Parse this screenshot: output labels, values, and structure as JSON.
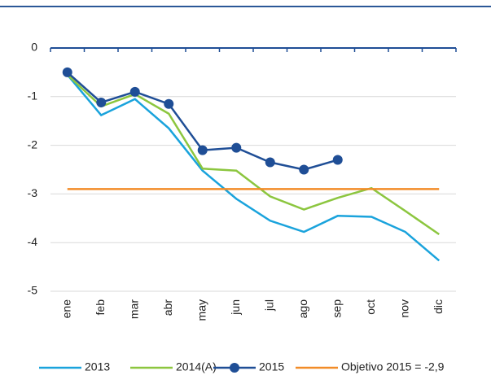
{
  "chart_data": {
    "type": "line",
    "categories": [
      "ene",
      "feb",
      "mar",
      "abr",
      "may",
      "jun",
      "jul",
      "ago",
      "sep",
      "oct",
      "nov",
      "dic"
    ],
    "series": [
      {
        "name": "2013",
        "color": "#1aa3dc",
        "values": [
          -0.55,
          -1.38,
          -1.05,
          -1.65,
          -2.52,
          -3.1,
          -3.55,
          -3.78,
          -3.45,
          -3.47,
          -3.78,
          -4.37
        ]
      },
      {
        "name": "2014(A)",
        "color": "#8cc63f",
        "values": [
          -0.55,
          -1.2,
          -0.95,
          -1.35,
          -2.48,
          -2.52,
          -3.05,
          -3.32,
          -3.08,
          -2.88,
          -3.35,
          -3.83
        ]
      },
      {
        "name": "2015",
        "color": "#1f4e96",
        "markers": true,
        "values": [
          -0.5,
          -1.12,
          -0.9,
          -1.15,
          -2.1,
          -2.05,
          -2.35,
          -2.5,
          -2.3,
          null,
          null,
          null
        ]
      },
      {
        "name": "Objetivo 2015 = -2,9",
        "color": "#f28c28",
        "values": [
          -2.9,
          -2.9,
          -2.9,
          -2.9,
          -2.9,
          -2.9,
          -2.9,
          -2.9,
          -2.9,
          -2.9,
          -2.9,
          -2.9
        ]
      }
    ],
    "ylim": [
      -5,
      0
    ],
    "yticks": [
      0,
      -1,
      -2,
      -3,
      -4,
      -5
    ],
    "grid": true
  }
}
